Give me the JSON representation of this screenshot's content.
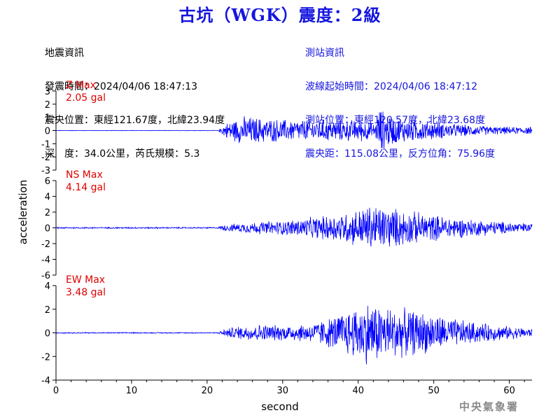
{
  "title": "古坑（WGK）震度：2級",
  "quake_info": {
    "heading": "地震資訊",
    "time": "發震時間：2024/04/06 18:47:13",
    "epicenter": "震央位置：東經121.67度，北緯23.94度",
    "depth_mag": "深　度：34.0公里，芮氏規模：5.3"
  },
  "station_info": {
    "heading": "測站資訊",
    "start_time": "波線起始時間：2024/04/06 18:47:12",
    "location": "測站位置：東經120.57度，北緯23.68度",
    "distance": "震央距：115.08公里，反方位角：75.96度"
  },
  "credit": "中央氣象署",
  "colors": {
    "trace": "#0000ff",
    "label": "#e00000",
    "title": "#1515e0",
    "axis": "#000000"
  },
  "chart_data": {
    "type": "line",
    "xlabel": "second",
    "ylabel": "acceleration",
    "xlim": [
      0,
      63
    ],
    "xticks": [
      0,
      10,
      20,
      30,
      40,
      50,
      60
    ],
    "grid": false,
    "panels": [
      {
        "label": "Z Max",
        "max_label": "2.05 gal",
        "peak": 2.05,
        "ylim": [
          -3,
          3
        ],
        "yticks": [
          -3,
          -2,
          -1,
          0,
          1,
          2,
          3
        ],
        "envelope": [
          [
            0,
            0.02
          ],
          [
            21.5,
            0.02
          ],
          [
            22,
            0.4
          ],
          [
            23,
            0.8
          ],
          [
            25,
            1.2
          ],
          [
            28,
            1.0
          ],
          [
            31,
            0.9
          ],
          [
            34,
            0.9
          ],
          [
            37,
            0.9
          ],
          [
            40,
            0.9
          ],
          [
            41,
            0.9
          ],
          [
            42.2,
            0.5
          ],
          [
            42.8,
            1.9
          ],
          [
            43.5,
            1.6
          ],
          [
            45,
            1.1
          ],
          [
            48,
            0.9
          ],
          [
            52,
            0.6
          ],
          [
            56,
            0.4
          ],
          [
            60,
            0.3
          ],
          [
            63,
            0.3
          ]
        ]
      },
      {
        "label": "NS Max",
        "max_label": "4.14 gal",
        "peak": 4.14,
        "ylim": [
          -6,
          6
        ],
        "yticks": [
          -6,
          -4,
          -2,
          0,
          2,
          4,
          6
        ],
        "envelope": [
          [
            0,
            0.1
          ],
          [
            21.5,
            0.1
          ],
          [
            22,
            0.4
          ],
          [
            26,
            0.8
          ],
          [
            30,
            1.0
          ],
          [
            35,
            1.6
          ],
          [
            39,
            2.3
          ],
          [
            42,
            3.3
          ],
          [
            43.5,
            3.0
          ],
          [
            46,
            2.5
          ],
          [
            50,
            1.8
          ],
          [
            55,
            1.2
          ],
          [
            60,
            0.8
          ],
          [
            63,
            0.6
          ]
        ]
      },
      {
        "label": "EW Max",
        "max_label": "3.48 gal",
        "peak": 3.48,
        "ylim": [
          -4,
          4
        ],
        "yticks": [
          -4,
          -2,
          0,
          2,
          4
        ],
        "envelope": [
          [
            0,
            0.05
          ],
          [
            21.5,
            0.05
          ],
          [
            22,
            0.3
          ],
          [
            24,
            0.6
          ],
          [
            27,
            0.8
          ],
          [
            30,
            0.7
          ],
          [
            34,
            0.9
          ],
          [
            37,
            1.6
          ],
          [
            39.5,
            2.4
          ],
          [
            41.5,
            3.0
          ],
          [
            43,
            2.6
          ],
          [
            46,
            2.2
          ],
          [
            49,
            1.9
          ],
          [
            52,
            1.4
          ],
          [
            56,
            0.9
          ],
          [
            60,
            0.6
          ],
          [
            63,
            0.4
          ]
        ]
      }
    ]
  }
}
